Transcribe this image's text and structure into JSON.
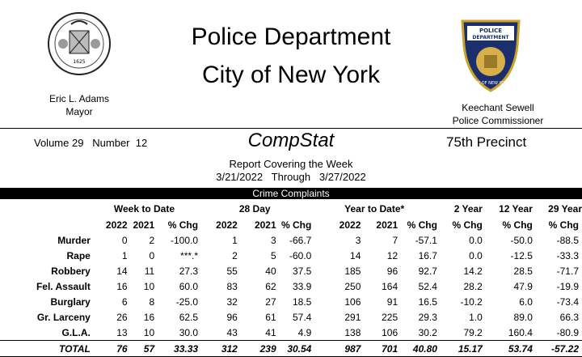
{
  "header": {
    "title_line1": "Police Department",
    "title_line2": "City of New York",
    "mayor_name": "Eric L. Adams",
    "mayor_title": "Mayor",
    "commissioner_name": "Keechant Sewell",
    "commissioner_title": "Police Commissioner",
    "seal_year": "1625",
    "badge_top": "POLICE DEPARTMENT",
    "badge_bottom": "CITY OF NEW YORK"
  },
  "meta": {
    "volume": "Volume 29   Number  12",
    "compstat": "CompStat",
    "precinct": "75th Precinct",
    "report_line1": "Report Covering the Week",
    "report_line2": "3/21/2022   Through   3/27/2022"
  },
  "section_title": "Crime Complaints",
  "groups": {
    "week": "Week to Date",
    "day28": "28 Day",
    "ytd": "Year to Date*",
    "y2": "2 Year",
    "y12": "12 Year",
    "y29": "29 Year"
  },
  "col_headers": {
    "c2022": "2022",
    "c2021": "2021",
    "pchg": "% Chg"
  },
  "rows": [
    {
      "label": "Murder",
      "w22": "0",
      "w21": "2",
      "wp": "-100.0",
      "d22": "1",
      "d21": "3",
      "dp": "-66.7",
      "y22": "3",
      "y21": "7",
      "yp": "-57.1",
      "y2": "0.0",
      "y12": "-50.0",
      "y29": "-88.5"
    },
    {
      "label": "Rape",
      "w22": "1",
      "w21": "0",
      "wp": "***.*",
      "d22": "2",
      "d21": "5",
      "dp": "-60.0",
      "y22": "14",
      "y21": "12",
      "yp": "16.7",
      "y2": "0.0",
      "y12": "-12.5",
      "y29": "-33.3"
    },
    {
      "label": "Robbery",
      "w22": "14",
      "w21": "11",
      "wp": "27.3",
      "d22": "55",
      "d21": "40",
      "dp": "37.5",
      "y22": "185",
      "y21": "96",
      "yp": "92.7",
      "y2": "14.2",
      "y12": "28.5",
      "y29": "-71.7"
    },
    {
      "label": "Fel. Assault",
      "w22": "16",
      "w21": "10",
      "wp": "60.0",
      "d22": "83",
      "d21": "62",
      "dp": "33.9",
      "y22": "250",
      "y21": "164",
      "yp": "52.4",
      "y2": "28.2",
      "y12": "47.9",
      "y29": "-19.9"
    },
    {
      "label": "Burglary",
      "w22": "6",
      "w21": "8",
      "wp": "-25.0",
      "d22": "32",
      "d21": "27",
      "dp": "18.5",
      "y22": "106",
      "y21": "91",
      "yp": "16.5",
      "y2": "-10.2",
      "y12": "6.0",
      "y29": "-73.4"
    },
    {
      "label": "Gr. Larceny",
      "w22": "26",
      "w21": "16",
      "wp": "62.5",
      "d22": "96",
      "d21": "61",
      "dp": "57.4",
      "y22": "291",
      "y21": "225",
      "yp": "29.3",
      "y2": "1.0",
      "y12": "89.0",
      "y29": "66.3"
    },
    {
      "label": "G.L.A.",
      "w22": "13",
      "w21": "10",
      "wp": "30.0",
      "d22": "43",
      "d21": "41",
      "dp": "4.9",
      "y22": "138",
      "y21": "106",
      "yp": "30.2",
      "y2": "79.2",
      "y12": "160.4",
      "y29": "-80.9"
    }
  ],
  "total": {
    "label": "TOTAL",
    "w22": "76",
    "w21": "57",
    "wp": "33.33",
    "d22": "312",
    "d21": "239",
    "dp": "30.54",
    "y22": "987",
    "y21": "701",
    "yp": "40.80",
    "y2": "15.17",
    "y12": "53.74",
    "y29": "-57.22"
  }
}
